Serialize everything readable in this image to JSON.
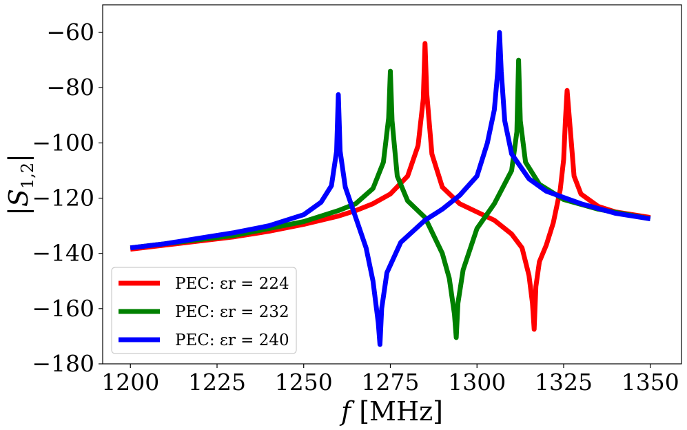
{
  "chart_data": {
    "type": "line",
    "xlabel": "f [MHz]",
    "ylabel": "|S1,2|",
    "xlim": [
      1192,
      1359
    ],
    "ylim": [
      -180,
      -50
    ],
    "xticks": [
      1200,
      1225,
      1250,
      1275,
      1300,
      1325,
      1350
    ],
    "yticks": [
      -180,
      -160,
      -140,
      -120,
      -100,
      -80,
      -60
    ],
    "xtick_labels": [
      "1200",
      "1225",
      "1250",
      "1275",
      "1300",
      "1325",
      "1350"
    ],
    "ytick_labels": [
      "−180",
      "−160",
      "−140",
      "−120",
      "−100",
      "−80",
      "−60"
    ],
    "grid": false,
    "legend_position": "lower-left",
    "series": [
      {
        "name": "PEC: εr = 224",
        "color": "#ff0000",
        "x": [
          1200,
          1210,
          1220,
          1230,
          1240,
          1250,
          1260,
          1265,
          1270,
          1275,
          1280,
          1283,
          1284.5,
          1285,
          1285.5,
          1287,
          1290,
          1295,
          1300,
          1305,
          1310,
          1313,
          1315,
          1316,
          1316.5,
          1317,
          1318,
          1320,
          1322,
          1324,
          1325,
          1325.5,
          1326,
          1328,
          1330,
          1335,
          1340,
          1345,
          1350
        ],
        "y": [
          -138.5,
          -137,
          -135.5,
          -134,
          -132,
          -129.5,
          -126.5,
          -124.5,
          -122,
          -118.5,
          -112,
          -101,
          -84,
          -64,
          -82,
          -104,
          -116,
          -122,
          -125,
          -128,
          -133,
          -138,
          -148,
          -158,
          -167.5,
          -152,
          -143,
          -137,
          -129,
          -117,
          -106,
          -92,
          -81,
          -112,
          -118.5,
          -123,
          -125,
          -126,
          -127
        ]
      },
      {
        "name": "PEC: εr = 232",
        "color": "#008000",
        "x": [
          1200,
          1210,
          1220,
          1230,
          1240,
          1250,
          1260,
          1265,
          1270,
          1273,
          1274.5,
          1275,
          1275.5,
          1277,
          1280,
          1285,
          1290,
          1292,
          1293.5,
          1294,
          1294.5,
          1296,
          1300,
          1305,
          1310,
          1311.5,
          1312,
          1312.5,
          1314,
          1318,
          1325,
          1335,
          1350
        ],
        "y": [
          -138,
          -136.5,
          -135,
          -133.5,
          -131,
          -128.5,
          -124.5,
          -122,
          -116.5,
          -107,
          -91,
          -74,
          -92,
          -112,
          -121,
          -127,
          -140,
          -149,
          -162,
          -170.5,
          -158,
          -146,
          -131,
          -122,
          -110,
          -96,
          -70,
          -92,
          -107,
          -115,
          -120.5,
          -124,
          -127.5
        ]
      },
      {
        "name": "PEC: εr = 240",
        "color": "#0000ff",
        "x": [
          1200,
          1210,
          1220,
          1230,
          1240,
          1250,
          1255,
          1258,
          1259.5,
          1260,
          1260.5,
          1262,
          1265,
          1268,
          1270,
          1271.5,
          1272,
          1272.5,
          1274,
          1278,
          1285,
          1290,
          1295,
          1300,
          1303,
          1305,
          1306,
          1306.5,
          1307,
          1308,
          1310,
          1315,
          1320,
          1330,
          1340,
          1350
        ],
        "y": [
          -138,
          -136.5,
          -134.5,
          -132.5,
          -130,
          -126,
          -121.5,
          -115.5,
          -103,
          -82.5,
          -103,
          -116,
          -127,
          -138,
          -150,
          -165,
          -173,
          -160,
          -147,
          -136,
          -128,
          -124,
          -119,
          -112,
          -100,
          -88,
          -74,
          -60,
          -74,
          -92,
          -104,
          -113,
          -117.5,
          -122,
          -125.5,
          -127.5
        ]
      }
    ]
  }
}
